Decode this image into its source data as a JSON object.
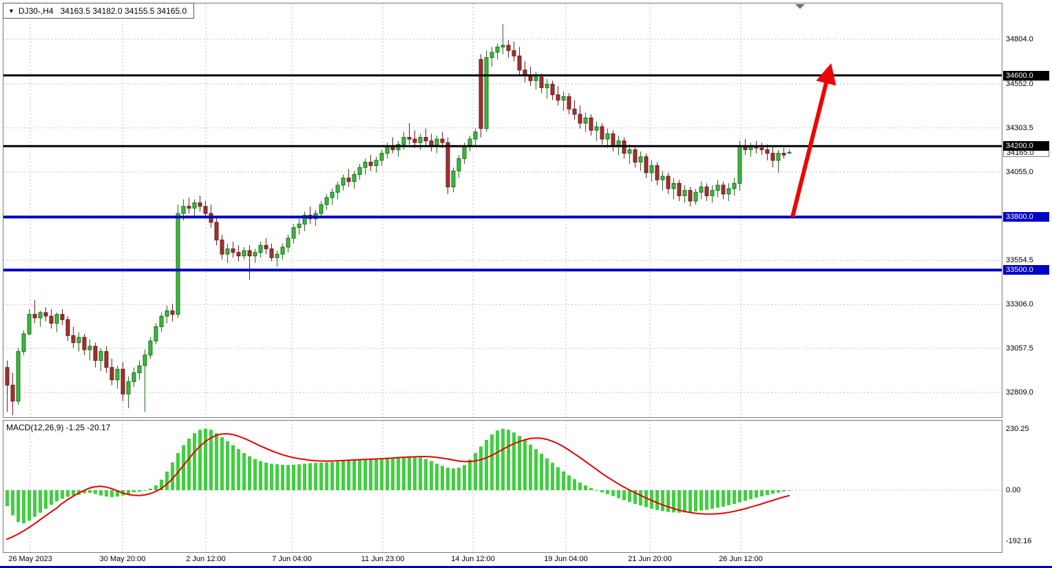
{
  "header": {
    "symbol_dropdown_icon": "▼",
    "symbol_period": "DJ30-,H4",
    "ohlc_text": "34163.5 34182.0 34155.5 34165.0"
  },
  "chart_data": {
    "type": "candlestick",
    "title": "DJ30-,H4",
    "grid": true,
    "legend_position": "none",
    "x_labels": [
      "26 May 2023",
      "30 May 20:00",
      "2 Jun 12:00",
      "7 Jun 04:00",
      "11 Jun 23:00",
      "14 Jun 12:00",
      "19 Jun 04:00",
      "21 Jun 20:00",
      "26 Jun 12:00"
    ],
    "price_axis": {
      "gridlines": [
        34804.0,
        34552.0,
        34303.5,
        34055.0,
        33806.5,
        33554.5,
        33306.0,
        33057.5,
        32809.0
      ],
      "ylim": [
        32665,
        35010
      ]
    },
    "hlines": [
      {
        "value": 34600.0,
        "label": "34600.0",
        "color": "#000000",
        "width": 3
      },
      {
        "value": 34200.0,
        "label": "34200.0",
        "color": "#000000",
        "width": 3
      },
      {
        "value": 33800.0,
        "label": "33800.0",
        "color": "#0000c8",
        "width": 4
      },
      {
        "value": 33500.0,
        "label": "33500.0",
        "color": "#0000c8",
        "width": 4
      }
    ],
    "current_price": 34165.0,
    "current_price_label": "34165.0",
    "annotation_arrow": {
      "direction": "up",
      "from_value": 33800,
      "to_value": 34580,
      "color": "#ee0404"
    },
    "colors": {
      "bull_fill": "#3cb83c",
      "bull_border": "#1c6e1c",
      "bear_fill": "#a03030",
      "bear_border": "#6e1c1c",
      "macd_histogram": "#3fd03f",
      "macd_signal": "#e80000",
      "grid": "#c2c2c2",
      "bottom_bar": "#0000c8"
    },
    "candles": [
      [
        32950,
        32990,
        32700,
        32850
      ],
      [
        32850,
        32920,
        32680,
        32760
      ],
      [
        32760,
        33060,
        32740,
        33040
      ],
      [
        33040,
        33160,
        33020,
        33140
      ],
      [
        33140,
        33280,
        33130,
        33250
      ],
      [
        33250,
        33330,
        33200,
        33230
      ],
      [
        33230,
        33270,
        33180,
        33260
      ],
      [
        33260,
        33290,
        33210,
        33240
      ],
      [
        33240,
        33280,
        33170,
        33200
      ],
      [
        33200,
        33260,
        33150,
        33250
      ],
      [
        33250,
        33280,
        33190,
        33220
      ],
      [
        33220,
        33240,
        33100,
        33130
      ],
      [
        33130,
        33180,
        33060,
        33090
      ],
      [
        33090,
        33150,
        33040,
        33120
      ],
      [
        33120,
        33140,
        33020,
        33050
      ],
      [
        33050,
        33110,
        32990,
        33070
      ],
      [
        33070,
        33090,
        32950,
        32990
      ],
      [
        32990,
        33060,
        32930,
        33040
      ],
      [
        33040,
        33070,
        32920,
        32950
      ],
      [
        32950,
        33000,
        32850,
        32880
      ],
      [
        32880,
        32960,
        32830,
        32940
      ],
      [
        32940,
        32980,
        32760,
        32800
      ],
      [
        32800,
        32900,
        32720,
        32870
      ],
      [
        32870,
        32950,
        32840,
        32920
      ],
      [
        32920,
        32990,
        32880,
        32960
      ],
      [
        32960,
        33050,
        32700,
        33020
      ],
      [
        33020,
        33120,
        33000,
        33100
      ],
      [
        33100,
        33200,
        33080,
        33180
      ],
      [
        33180,
        33260,
        33150,
        33240
      ],
      [
        33240,
        33300,
        33200,
        33270
      ],
      [
        33270,
        33310,
        33210,
        33250
      ],
      [
        33250,
        33870,
        33230,
        33820
      ],
      [
        33820,
        33900,
        33780,
        33860
      ],
      [
        33860,
        33910,
        33820,
        33850
      ],
      [
        33850,
        33900,
        33800,
        33880
      ],
      [
        33880,
        33920,
        33830,
        33860
      ],
      [
        33860,
        33890,
        33790,
        33820
      ],
      [
        33820,
        33870,
        33740,
        33770
      ],
      [
        33770,
        33800,
        33640,
        33670
      ],
      [
        33670,
        33700,
        33560,
        33590
      ],
      [
        33590,
        33650,
        33540,
        33620
      ],
      [
        33620,
        33660,
        33570,
        33600
      ],
      [
        33600,
        33640,
        33550,
        33580
      ],
      [
        33580,
        33630,
        33560,
        33610
      ],
      [
        33610,
        33640,
        33445,
        33580
      ],
      [
        33580,
        33620,
        33540,
        33600
      ],
      [
        33600,
        33660,
        33570,
        33640
      ],
      [
        33640,
        33680,
        33590,
        33620
      ],
      [
        33620,
        33650,
        33550,
        33570
      ],
      [
        33570,
        33610,
        33520,
        33590
      ],
      [
        33590,
        33650,
        33560,
        33630
      ],
      [
        33630,
        33700,
        33600,
        33680
      ],
      [
        33680,
        33760,
        33650,
        33740
      ],
      [
        33740,
        33790,
        33700,
        33760
      ],
      [
        33760,
        33830,
        33720,
        33810
      ],
      [
        33810,
        33860,
        33760,
        33790
      ],
      [
        33790,
        33840,
        33750,
        33820
      ],
      [
        33820,
        33890,
        33800,
        33870
      ],
      [
        33870,
        33930,
        33840,
        33910
      ],
      [
        33910,
        33960,
        33870,
        33940
      ],
      [
        33940,
        34000,
        33900,
        33980
      ],
      [
        33980,
        34040,
        33950,
        34020
      ],
      [
        34020,
        34070,
        33970,
        34000
      ],
      [
        34000,
        34060,
        33960,
        34040
      ],
      [
        34040,
        34100,
        34010,
        34080
      ],
      [
        34080,
        34130,
        34040,
        34110
      ],
      [
        34110,
        34150,
        34060,
        34090
      ],
      [
        34090,
        34140,
        34050,
        34120
      ],
      [
        34120,
        34180,
        34090,
        34160
      ],
      [
        34160,
        34220,
        34130,
        34200
      ],
      [
        34200,
        34250,
        34160,
        34180
      ],
      [
        34180,
        34230,
        34140,
        34210
      ],
      [
        34210,
        34280,
        34180,
        34250
      ],
      [
        34250,
        34330,
        34210,
        34240
      ],
      [
        34240,
        34290,
        34190,
        34220
      ],
      [
        34220,
        34270,
        34180,
        34250
      ],
      [
        34250,
        34300,
        34200,
        34230
      ],
      [
        34230,
        34270,
        34170,
        34200
      ],
      [
        34200,
        34260,
        34160,
        34240
      ],
      [
        34240,
        34280,
        34190,
        34220
      ],
      [
        34220,
        34250,
        33930,
        33970
      ],
      [
        33970,
        34080,
        33940,
        34060
      ],
      [
        34060,
        34150,
        34020,
        34130
      ],
      [
        34130,
        34220,
        34100,
        34200
      ],
      [
        34200,
        34260,
        34170,
        34240
      ],
      [
        34240,
        34300,
        34200,
        34280
      ],
      [
        34690,
        34720,
        34250,
        34300
      ],
      [
        34300,
        34740,
        34280,
        34700
      ],
      [
        34700,
        34760,
        34650,
        34730
      ],
      [
        34730,
        34780,
        34690,
        34760
      ],
      [
        34760,
        34890,
        34720,
        34770
      ],
      [
        34770,
        34800,
        34700,
        34740
      ],
      [
        34740,
        34790,
        34680,
        34710
      ],
      [
        34710,
        34760,
        34600,
        34630
      ],
      [
        34630,
        34680,
        34560,
        34600
      ],
      [
        34600,
        34650,
        34540,
        34570
      ],
      [
        34570,
        34620,
        34520,
        34590
      ],
      [
        34590,
        34610,
        34500,
        34530
      ],
      [
        34530,
        34580,
        34470,
        34550
      ],
      [
        34550,
        34570,
        34460,
        34490
      ],
      [
        34490,
        34540,
        34430,
        34460
      ],
      [
        34460,
        34510,
        34400,
        34480
      ],
      [
        34480,
        34500,
        34380,
        34410
      ],
      [
        34410,
        34460,
        34350,
        34380
      ],
      [
        34380,
        34430,
        34300,
        34330
      ],
      [
        34330,
        34390,
        34280,
        34360
      ],
      [
        34360,
        34380,
        34260,
        34290
      ],
      [
        34290,
        34340,
        34230,
        34310
      ],
      [
        34310,
        34330,
        34210,
        34240
      ],
      [
        34240,
        34300,
        34190,
        34270
      ],
      [
        34270,
        34290,
        34170,
        34200
      ],
      [
        34200,
        34260,
        34150,
        34230
      ],
      [
        34230,
        34250,
        34130,
        34160
      ],
      [
        34160,
        34210,
        34100,
        34180
      ],
      [
        34180,
        34200,
        34080,
        34110
      ],
      [
        34110,
        34170,
        34060,
        34140
      ],
      [
        34140,
        34160,
        34020,
        34050
      ],
      [
        34050,
        34120,
        34000,
        34090
      ],
      [
        34090,
        34110,
        33980,
        34010
      ],
      [
        34010,
        34060,
        33950,
        34030
      ],
      [
        34030,
        34050,
        33930,
        33960
      ],
      [
        33960,
        34020,
        33900,
        33990
      ],
      [
        33990,
        34010,
        33890,
        33920
      ],
      [
        33920,
        33980,
        33880,
        33950
      ],
      [
        33950,
        33970,
        33860,
        33890
      ],
      [
        33890,
        33960,
        33870,
        33940
      ],
      [
        33940,
        34000,
        33900,
        33970
      ],
      [
        33970,
        33990,
        33890,
        33920
      ],
      [
        33920,
        33980,
        33880,
        33950
      ],
      [
        33950,
        34010,
        33910,
        33980
      ],
      [
        33980,
        34000,
        33900,
        33930
      ],
      [
        33930,
        33990,
        33890,
        33960
      ],
      [
        33960,
        34020,
        33920,
        33990
      ],
      [
        33990,
        34230,
        33950,
        34200
      ],
      [
        34200,
        34240,
        34150,
        34180
      ],
      [
        34180,
        34220,
        34140,
        34200
      ],
      [
        34200,
        34230,
        34160,
        34190
      ],
      [
        34190,
        34220,
        34150,
        34180
      ],
      [
        34180,
        34210,
        34120,
        34160
      ],
      [
        34160,
        34200,
        34080,
        34120
      ],
      [
        34120,
        34180,
        34050,
        34160
      ],
      [
        34160,
        34190,
        34130,
        34150
      ],
      [
        34163.5,
        34182,
        34155.5,
        34165
      ]
    ],
    "macd": {
      "label": "MACD(12,26,9)",
      "current_values": "-1.25 -20.17",
      "axis": [
        {
          "v": 230.25,
          "label": "230.25"
        },
        {
          "v": 0,
          "label": "0.00"
        },
        {
          "v": -192.16,
          "label": "-192.16"
        }
      ],
      "histogram": [
        -60,
        -95,
        -120,
        -125,
        -115,
        -100,
        -85,
        -70,
        -55,
        -42,
        -32,
        -25,
        -20,
        -18,
        -12,
        -10,
        -14,
        -20,
        -24,
        -26,
        -24,
        -20,
        -15,
        -8,
        -6,
        0,
        6,
        18,
        40,
        70,
        105,
        140,
        170,
        195,
        215,
        228,
        232,
        228,
        215,
        200,
        185,
        170,
        155,
        140,
        128,
        118,
        110,
        104,
        100,
        98,
        96,
        95,
        96,
        98,
        100,
        102,
        103,
        104,
        105,
        106,
        108,
        110,
        112,
        113,
        114,
        115,
        116,
        117,
        118,
        120,
        122,
        124,
        126,
        128,
        128,
        124,
        118,
        110,
        100,
        92,
        85,
        82,
        85,
        95,
        115,
        140,
        165,
        190,
        210,
        225,
        232,
        228,
        218,
        205,
        190,
        172,
        155,
        138,
        120,
        103,
        87,
        71,
        56,
        42,
        29,
        18,
        8,
        0,
        -8,
        -15,
        -22,
        -30,
        -38,
        -45,
        -52,
        -58,
        -64,
        -70,
        -75,
        -79,
        -82,
        -84,
        -85,
        -84,
        -82,
        -80,
        -77,
        -74,
        -70,
        -66,
        -62,
        -57,
        -52,
        -46,
        -40,
        -34,
        -28,
        -23,
        -18,
        -13,
        -9,
        -5,
        -1.25
      ],
      "signal": [
        -185,
        -176,
        -166,
        -154,
        -141,
        -127,
        -112,
        -97,
        -82,
        -68,
        -50,
        -36,
        -23,
        -11,
        -1,
        8,
        13,
        15,
        12,
        6,
        -2,
        -10,
        -16,
        -19,
        -20,
        -18,
        -13,
        -5,
        6,
        22,
        42,
        66,
        92,
        118,
        143,
        165,
        183,
        197,
        207,
        212,
        213,
        210,
        204,
        196,
        187,
        177,
        167,
        158,
        149,
        141,
        134,
        128,
        123,
        119,
        116,
        113,
        111,
        110,
        110,
        110,
        111,
        112,
        113,
        114,
        115,
        116,
        117,
        118,
        119,
        120,
        121,
        123,
        124,
        125,
        126,
        127,
        127,
        126,
        124,
        121,
        118,
        114,
        110,
        108,
        108,
        110,
        115,
        122,
        131,
        142,
        154,
        165,
        175,
        183,
        190,
        195,
        197,
        196,
        192,
        185,
        176,
        165,
        152,
        138,
        124,
        109,
        94,
        79,
        64,
        50,
        37,
        24,
        12,
        1,
        -9,
        -19,
        -29,
        -38,
        -47,
        -55,
        -62,
        -69,
        -75,
        -80,
        -84,
        -87,
        -89,
        -90,
        -90,
        -89,
        -87,
        -84,
        -80,
        -75,
        -70,
        -64,
        -58,
        -52,
        -45,
        -39,
        -32,
        -26,
        -20.17
      ]
    }
  }
}
